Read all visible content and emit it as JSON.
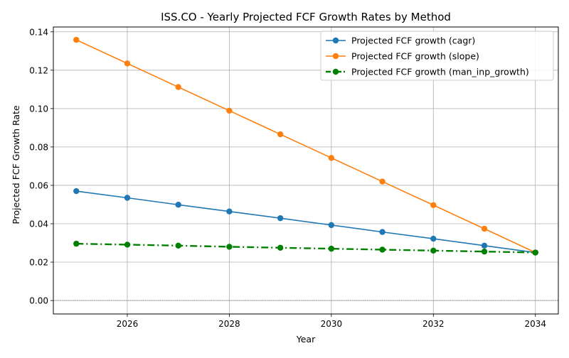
{
  "chart_data": {
    "type": "line",
    "title": "ISS.CO - Yearly Projected FCF Growth Rates by Method",
    "xlabel": "Year",
    "ylabel": "Projected FCF Growth Rate",
    "x": [
      2025,
      2026,
      2027,
      2028,
      2029,
      2030,
      2031,
      2032,
      2033,
      2034
    ],
    "xlim": [
      2024.55,
      2034.45
    ],
    "ylim": [
      -0.007,
      0.1425
    ],
    "xticks": [
      2026,
      2028,
      2030,
      2032,
      2034
    ],
    "xtick_labels": [
      "2026",
      "2028",
      "2030",
      "2032",
      "2034"
    ],
    "yticks": [
      0.0,
      0.02,
      0.04,
      0.06,
      0.08,
      0.1,
      0.12,
      0.14
    ],
    "ytick_labels": [
      "0.00",
      "0.02",
      "0.04",
      "0.06",
      "0.08",
      "0.10",
      "0.12",
      "0.14"
    ],
    "grid": true,
    "zero_line": true,
    "legend_position": "top-right",
    "series": [
      {
        "name": "Projected FCF growth (cagr)",
        "color": "#1f77b4",
        "style": "solid",
        "marker": "circle",
        "values": [
          0.057,
          0.0535,
          0.0499,
          0.0464,
          0.0429,
          0.0393,
          0.0357,
          0.0322,
          0.0286,
          0.025
        ]
      },
      {
        "name": "Projected FCF growth (slope)",
        "color": "#ff7f0e",
        "style": "solid",
        "marker": "circle",
        "values": [
          0.1358,
          0.1235,
          0.1112,
          0.0989,
          0.0866,
          0.0743,
          0.062,
          0.0497,
          0.0374,
          0.025
        ]
      },
      {
        "name": "Projected FCF growth (man_inp_growth)",
        "color": "#008000",
        "style": "dashdot",
        "marker": "circle",
        "values": [
          0.0296,
          0.0291,
          0.0286,
          0.028,
          0.0275,
          0.027,
          0.0265,
          0.026,
          0.0255,
          0.025
        ]
      }
    ]
  }
}
